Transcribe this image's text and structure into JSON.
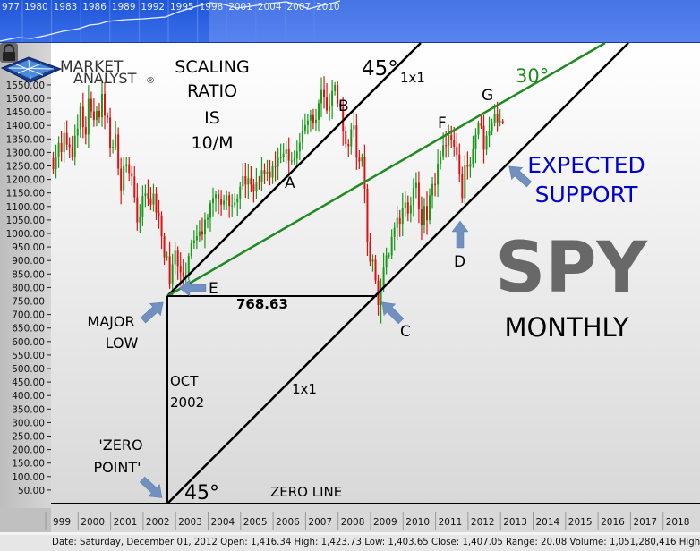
{
  "navigator": {
    "years": [
      "977",
      "1980",
      "1983",
      "1986",
      "1989",
      "1992",
      "1995",
      "1998",
      "2001",
      "2004",
      "2007",
      "2010"
    ]
  },
  "logo": {
    "line1": "MARKET",
    "line2": "ANALYST",
    "mark": "®"
  },
  "status_bar": {
    "text": "Date: Saturday, December 01, 2012 Open: 1,416.34 High: 1,423.73 Low: 1,403.65 Close: 1,407.05 Range: 20.08 Volume: 1,051,280,416 High Date:"
  },
  "annotations": {
    "scaling": [
      "SCALING",
      "RATIO",
      "IS",
      "10/M"
    ],
    "upper_angle": "45°",
    "upper_ratio": "1x1",
    "green_angle": "30°",
    "point_a": "A",
    "point_b": "B",
    "point_c": "C",
    "point_d": "D",
    "point_e": "E",
    "point_f": "F",
    "point_g": "G",
    "expected_support": [
      "EXPECTED",
      "SUPPORT"
    ],
    "symbol": "SPY",
    "period": "MONTHLY",
    "low_value": "768.63",
    "major_low": [
      "MAJOR",
      "LOW"
    ],
    "date_label": [
      "OCT",
      "2002"
    ],
    "zero_point": [
      "'ZERO",
      "POINT'"
    ],
    "lower_angle": "45°",
    "lower_ratio": "1x1",
    "zero_line": "ZERO LINE"
  },
  "colors": {
    "up": "#1a9a1a",
    "down": "#e01010",
    "green_line": "#1f8a1f",
    "support_text": "#0000cc",
    "symbol": "#686868",
    "arrow": "#7090c0"
  },
  "chart_data": {
    "type": "candlestick",
    "title": "",
    "ylim": [
      0,
      1575
    ],
    "y_ticks": [
      50,
      100,
      150,
      200,
      250,
      300,
      350,
      400,
      450,
      500,
      550,
      600,
      650,
      700,
      750,
      800,
      850,
      900,
      950,
      1000,
      1050,
      1100,
      1150,
      1200,
      1250,
      1300,
      1350,
      1400,
      1450,
      1500,
      1550
    ],
    "x_tick_labels": [
      "999",
      "2000",
      "2001",
      "2002",
      "2003",
      "2004",
      "2005",
      "2006",
      "2007",
      "2008",
      "2009",
      "2010",
      "2011",
      "2012",
      "2013",
      "2014",
      "2015",
      "2016",
      "2017",
      "2018"
    ],
    "start_year": 1999,
    "monthly_close": [
      1279,
      1238,
      1286,
      1335,
      1301,
      1372,
      1329,
      1320,
      1282,
      1362,
      1388,
      1469,
      1394,
      1366,
      1498,
      1452,
      1420,
      1454,
      1430,
      1517,
      1436,
      1429,
      1315,
      1320,
      1366,
      1240,
      1160,
      1249,
      1256,
      1224,
      1211,
      1134,
      1041,
      1060,
      1139,
      1148,
      1130,
      1107,
      1147,
      1077,
      1067,
      990,
      912,
      916,
      815,
      886,
      936,
      880,
      856,
      841,
      848,
      917,
      964,
      975,
      990,
      1008,
      996,
      1051,
      1058,
      1112,
      1131,
      1145,
      1126,
      1107,
      1121,
      1141,
      1102,
      1104,
      1115,
      1130,
      1174,
      1212,
      1181,
      1204,
      1181,
      1157,
      1192,
      1191,
      1234,
      1220,
      1229,
      1207,
      1249,
      1248,
      1280,
      1281,
      1295,
      1311,
      1270,
      1270,
      1277,
      1304,
      1336,
      1378,
      1401,
      1418,
      1438,
      1407,
      1421,
      1482,
      1531,
      1503,
      1455,
      1474,
      1527,
      1549,
      1481,
      1468,
      1378,
      1331,
      1323,
      1386,
      1400,
      1280,
      1267,
      1283,
      1166,
      969,
      896,
      903,
      826,
      735,
      798,
      873,
      919,
      919,
      987,
      1021,
      1057,
      1036,
      1096,
      1115,
      1074,
      1104,
      1169,
      1187,
      1089,
      1031,
      1102,
      1049,
      1141,
      1183,
      1181,
      1258,
      1286,
      1327,
      1326,
      1364,
      1345,
      1321,
      1292,
      1219,
      1131,
      1253,
      1247,
      1258,
      1312,
      1366,
      1408,
      1398,
      1310,
      1362,
      1379,
      1407,
      1441,
      1412,
      1416,
      1407
    ],
    "major_low": {
      "date": "2002-10",
      "price": 768.63
    },
    "last_bar": {
      "date": "2012-12-01",
      "open": 1416.34,
      "high": 1423.73,
      "low": 1403.65,
      "close": 1407.05
    },
    "angle_lines": [
      {
        "label": "1x1",
        "angle": "45°",
        "from": {
          "date": "2002-10",
          "price": 768.63
        },
        "color": "black"
      },
      {
        "label": "30°",
        "from": {
          "date": "2002-10",
          "price": 768.63
        },
        "color": "green"
      },
      {
        "label": "1x1",
        "angle": "45°",
        "from": {
          "date": "2002-10",
          "price": 0
        },
        "color": "black"
      }
    ],
    "grid": false
  }
}
